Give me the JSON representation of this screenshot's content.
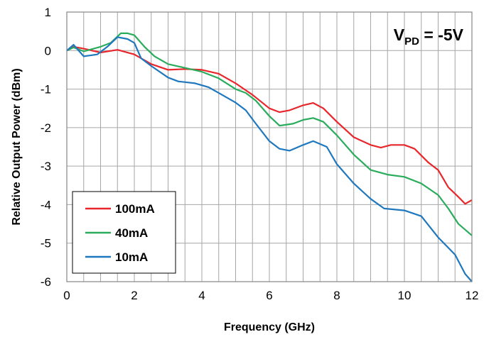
{
  "chart_data": {
    "type": "line",
    "xlabel": "Frequency (GHz)",
    "ylabel": "Relative Output Power (dBm)",
    "xlim": [
      0,
      12
    ],
    "ylim": [
      -6,
      1
    ],
    "xticks": [
      "0",
      "2",
      "4",
      "6",
      "8",
      "10",
      "12"
    ],
    "yticks": [
      "1",
      "0",
      "-1",
      "-2",
      "-3",
      "-4",
      "-5",
      "-6"
    ],
    "grid": true,
    "legend_position": "bottom-left",
    "annotation": {
      "main": "V",
      "sub": "PD",
      "rest": " = -5V"
    },
    "series": [
      {
        "name": "100mA",
        "color": "#e8262b",
        "points": [
          [
            0,
            0
          ],
          [
            0.2,
            0.1
          ],
          [
            0.5,
            0.05
          ],
          [
            1,
            -0.05
          ],
          [
            1.5,
            0.02
          ],
          [
            2,
            -0.1
          ],
          [
            2.5,
            -0.35
          ],
          [
            3,
            -0.5
          ],
          [
            3.5,
            -0.48
          ],
          [
            4,
            -0.5
          ],
          [
            4.5,
            -0.6
          ],
          [
            5,
            -0.85
          ],
          [
            5.5,
            -1.15
          ],
          [
            6,
            -1.5
          ],
          [
            6.3,
            -1.6
          ],
          [
            6.6,
            -1.55
          ],
          [
            7,
            -1.42
          ],
          [
            7.3,
            -1.36
          ],
          [
            7.6,
            -1.5
          ],
          [
            8,
            -1.85
          ],
          [
            8.5,
            -2.25
          ],
          [
            9,
            -2.45
          ],
          [
            9.3,
            -2.52
          ],
          [
            9.6,
            -2.45
          ],
          [
            10,
            -2.45
          ],
          [
            10.3,
            -2.55
          ],
          [
            10.7,
            -2.9
          ],
          [
            11,
            -3.1
          ],
          [
            11.3,
            -3.55
          ],
          [
            11.6,
            -3.8
          ],
          [
            11.8,
            -3.98
          ],
          [
            12,
            -3.88
          ]
        ]
      },
      {
        "name": "40mA",
        "color": "#2aac5c",
        "points": [
          [
            0,
            0
          ],
          [
            0.2,
            0.08
          ],
          [
            0.5,
            -0.02
          ],
          [
            1,
            0.1
          ],
          [
            1.3,
            0.2
          ],
          [
            1.6,
            0.45
          ],
          [
            1.8,
            0.45
          ],
          [
            2,
            0.4
          ],
          [
            2.3,
            0.1
          ],
          [
            2.6,
            -0.15
          ],
          [
            3,
            -0.35
          ],
          [
            3.5,
            -0.45
          ],
          [
            4,
            -0.55
          ],
          [
            4.5,
            -0.72
          ],
          [
            5,
            -1.0
          ],
          [
            5.3,
            -1.1
          ],
          [
            5.6,
            -1.3
          ],
          [
            6,
            -1.7
          ],
          [
            6.3,
            -1.95
          ],
          [
            6.7,
            -1.9
          ],
          [
            7,
            -1.8
          ],
          [
            7.3,
            -1.75
          ],
          [
            7.6,
            -1.85
          ],
          [
            8,
            -2.2
          ],
          [
            8.5,
            -2.7
          ],
          [
            9,
            -3.1
          ],
          [
            9.5,
            -3.22
          ],
          [
            10,
            -3.28
          ],
          [
            10.5,
            -3.45
          ],
          [
            11,
            -3.75
          ],
          [
            11.3,
            -4.1
          ],
          [
            11.6,
            -4.5
          ],
          [
            12,
            -4.8
          ]
        ]
      },
      {
        "name": "10mA",
        "color": "#1f78be",
        "points": [
          [
            0,
            0
          ],
          [
            0.2,
            0.15
          ],
          [
            0.5,
            -0.15
          ],
          [
            0.9,
            -0.1
          ],
          [
            1.2,
            0.1
          ],
          [
            1.5,
            0.35
          ],
          [
            1.8,
            0.3
          ],
          [
            2,
            0.2
          ],
          [
            2.2,
            -0.2
          ],
          [
            2.5,
            -0.4
          ],
          [
            3,
            -0.7
          ],
          [
            3.3,
            -0.8
          ],
          [
            3.8,
            -0.85
          ],
          [
            4.2,
            -0.95
          ],
          [
            4.7,
            -1.2
          ],
          [
            5,
            -1.35
          ],
          [
            5.3,
            -1.55
          ],
          [
            5.6,
            -1.9
          ],
          [
            6,
            -2.35
          ],
          [
            6.3,
            -2.55
          ],
          [
            6.6,
            -2.6
          ],
          [
            7,
            -2.45
          ],
          [
            7.3,
            -2.35
          ],
          [
            7.7,
            -2.5
          ],
          [
            8,
            -2.95
          ],
          [
            8.5,
            -3.45
          ],
          [
            9,
            -3.85
          ],
          [
            9.4,
            -4.1
          ],
          [
            10,
            -4.15
          ],
          [
            10.5,
            -4.3
          ],
          [
            11,
            -4.85
          ],
          [
            11.5,
            -5.3
          ],
          [
            11.8,
            -5.8
          ],
          [
            12,
            -6.0
          ]
        ]
      }
    ]
  }
}
